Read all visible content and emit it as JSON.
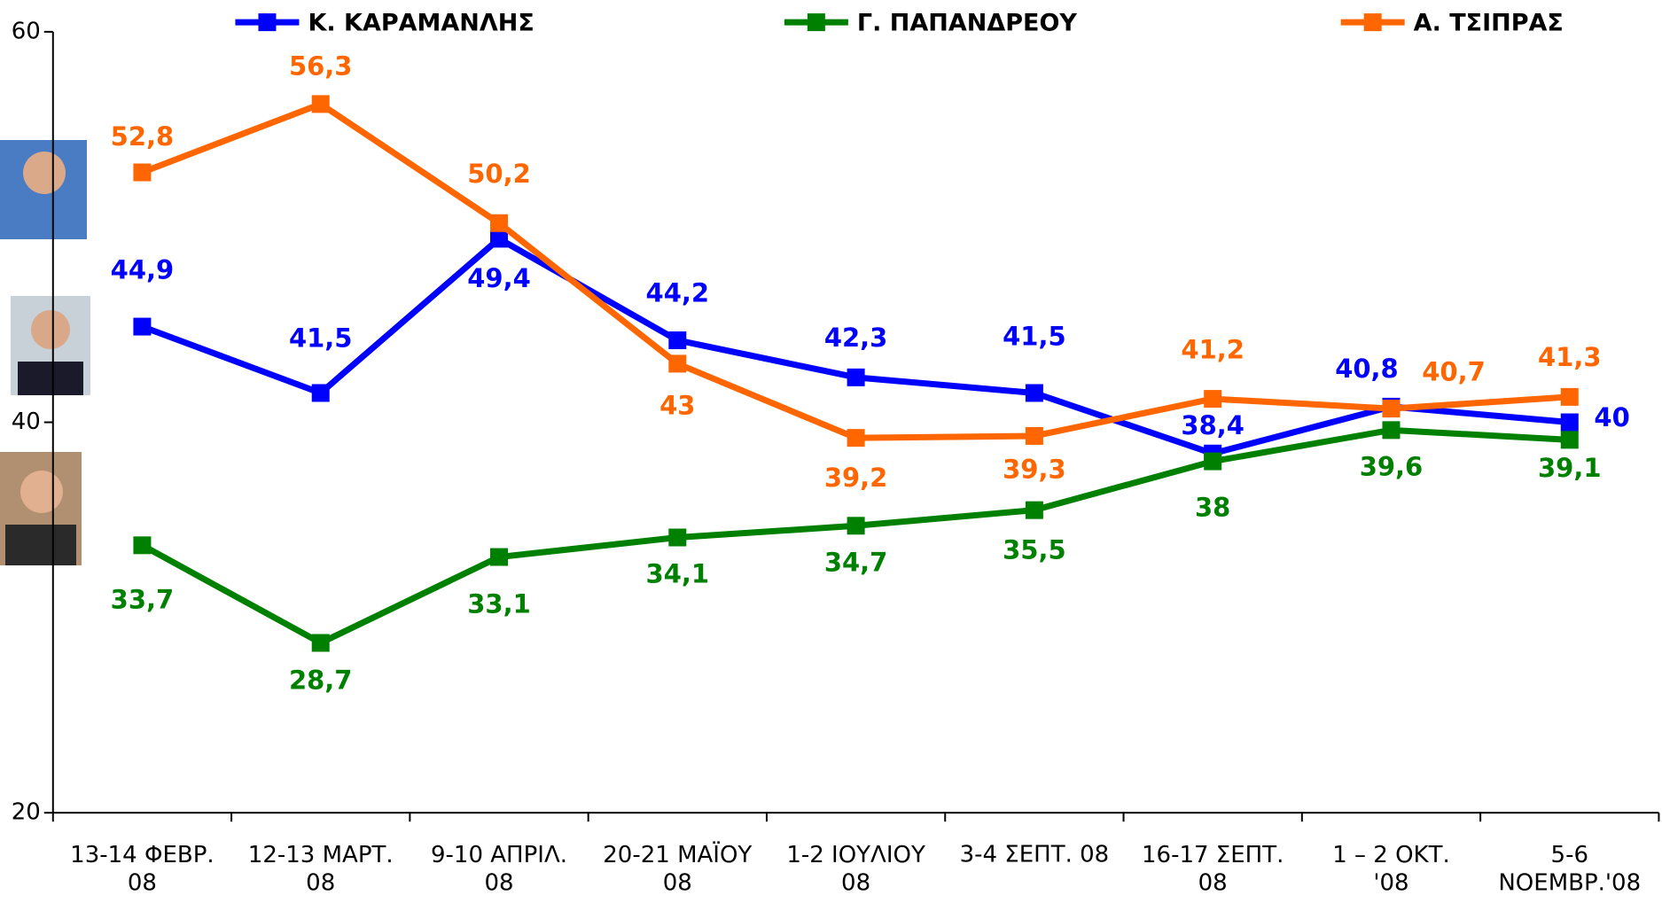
{
  "chart_data": {
    "type": "line",
    "categories": [
      "13-14 ΦΕΒΡ.\n08",
      "12-13 ΜΑΡΤ.\n08",
      "9-10 ΑΠΡΙΛ.\n08",
      "20-21 ΜΑΪΟΥ\n08",
      "1-2 ΙΟΥΛΙΟΥ\n08",
      "3-4 ΣΕΠΤ. 08",
      "16-17 ΣΕΠΤ.\n08",
      "1 – 2 ΟΚΤ.\n'08",
      "5-6\nΝΟΕΜΒΡ.'08"
    ],
    "series": [
      {
        "name": "Κ. ΚΑΡΑΜΑΝΛΗΣ",
        "color": "#0000ff",
        "values": [
          44.9,
          41.5,
          49.4,
          44.2,
          42.3,
          41.5,
          38.4,
          40.8,
          40
        ],
        "value_labels": [
          "44,9",
          "41,5",
          "49,4",
          "44,2",
          "42,3",
          "41,5",
          "38,4",
          "40,8",
          "40"
        ]
      },
      {
        "name": "Γ. ΠΑΠΑΝΔΡΕΟΥ",
        "color": "#008000",
        "values": [
          33.7,
          28.7,
          33.1,
          34.1,
          34.7,
          35.5,
          38,
          39.6,
          39.1
        ],
        "value_labels": [
          "33,7",
          "28,7",
          "33,1",
          "34,1",
          "34,7",
          "35,5",
          "38",
          "39,6",
          "39,1"
        ]
      },
      {
        "name": "Α. ΤΣΙΠΡΑΣ",
        "color": "#ff6600",
        "values": [
          52.8,
          56.3,
          50.2,
          43,
          39.2,
          39.3,
          41.2,
          40.7,
          41.3
        ],
        "value_labels": [
          "52,8",
          "56,3",
          "50,2",
          "43",
          "39,2",
          "39,3",
          "41,2",
          "40,7",
          "41,3"
        ]
      }
    ],
    "ylim": [
      20,
      60
    ],
    "yticks": [
      20,
      40,
      60
    ],
    "grid": false
  }
}
